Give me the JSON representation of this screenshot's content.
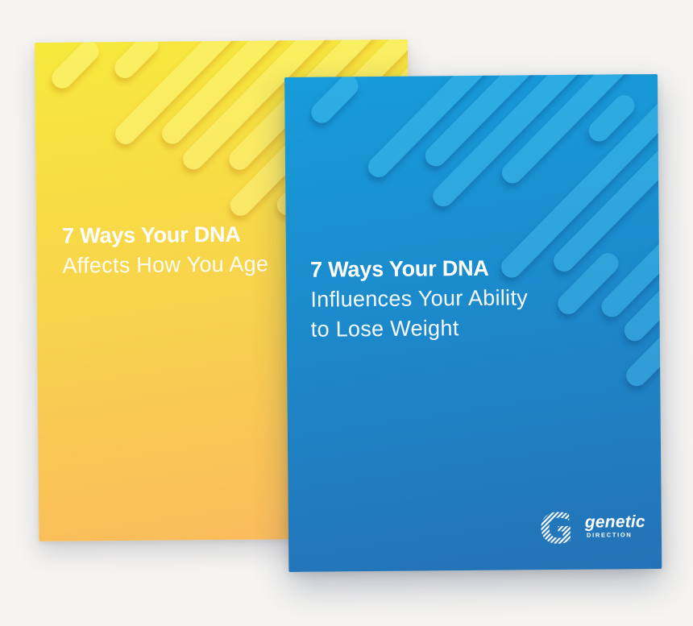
{
  "page": {
    "background": "#f5f4f2"
  },
  "covers": [
    {
      "name": "dna-aging-ebook",
      "title_bold": "7 Ways Your DNA",
      "subtitle_line1": "Affects How You Age",
      "colors": {
        "gradient_top": "#f7e93c",
        "gradient_mid": "#f8d14e",
        "gradient_bottom": "#fbba5e",
        "stripe": "rgba(255,252,150,0.40)",
        "stripe_shadow": "rgba(186,122,18,0.32)",
        "title": "#ffffff"
      }
    },
    {
      "name": "dna-weight-loss-ebook",
      "title_bold": "7 Ways Your DNA",
      "subtitle_line1": "Influences Your Ability",
      "subtitle_line2": "to Lose Weight",
      "logo": {
        "brand": "genetic",
        "tagline": "DIRECTION"
      },
      "colors": {
        "gradient_top": "#179cda",
        "gradient_mid": "#1d86c8",
        "gradient_bottom": "#2472b5",
        "stripe": "rgba(95,219,255,0.30)",
        "stripe_shadow": "rgba(8,62,118,0.32)",
        "title": "#ffffff"
      }
    }
  ]
}
